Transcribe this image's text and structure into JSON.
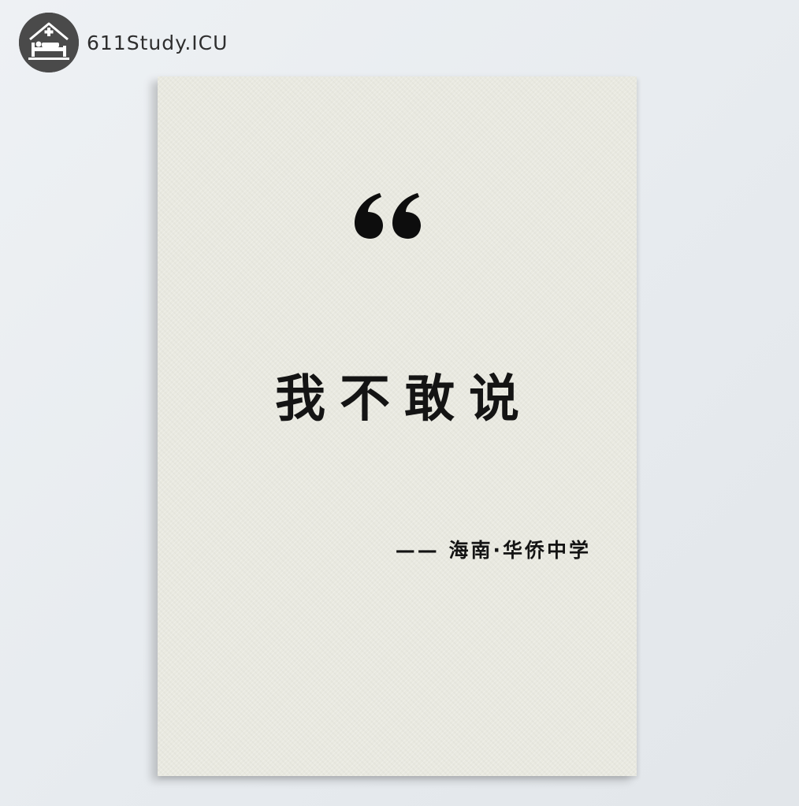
{
  "brand": {
    "name": "611Study.ICU",
    "logo_icon": "bed-house-icon",
    "logo_color": "#4a4a4a"
  },
  "card": {
    "quote_mark_icon": "quote-open-icon",
    "quote": "我不敢说",
    "attribution": "—— 海南·华侨中学",
    "paper_color": "#e9e9e0",
    "text_color": "#141414"
  }
}
